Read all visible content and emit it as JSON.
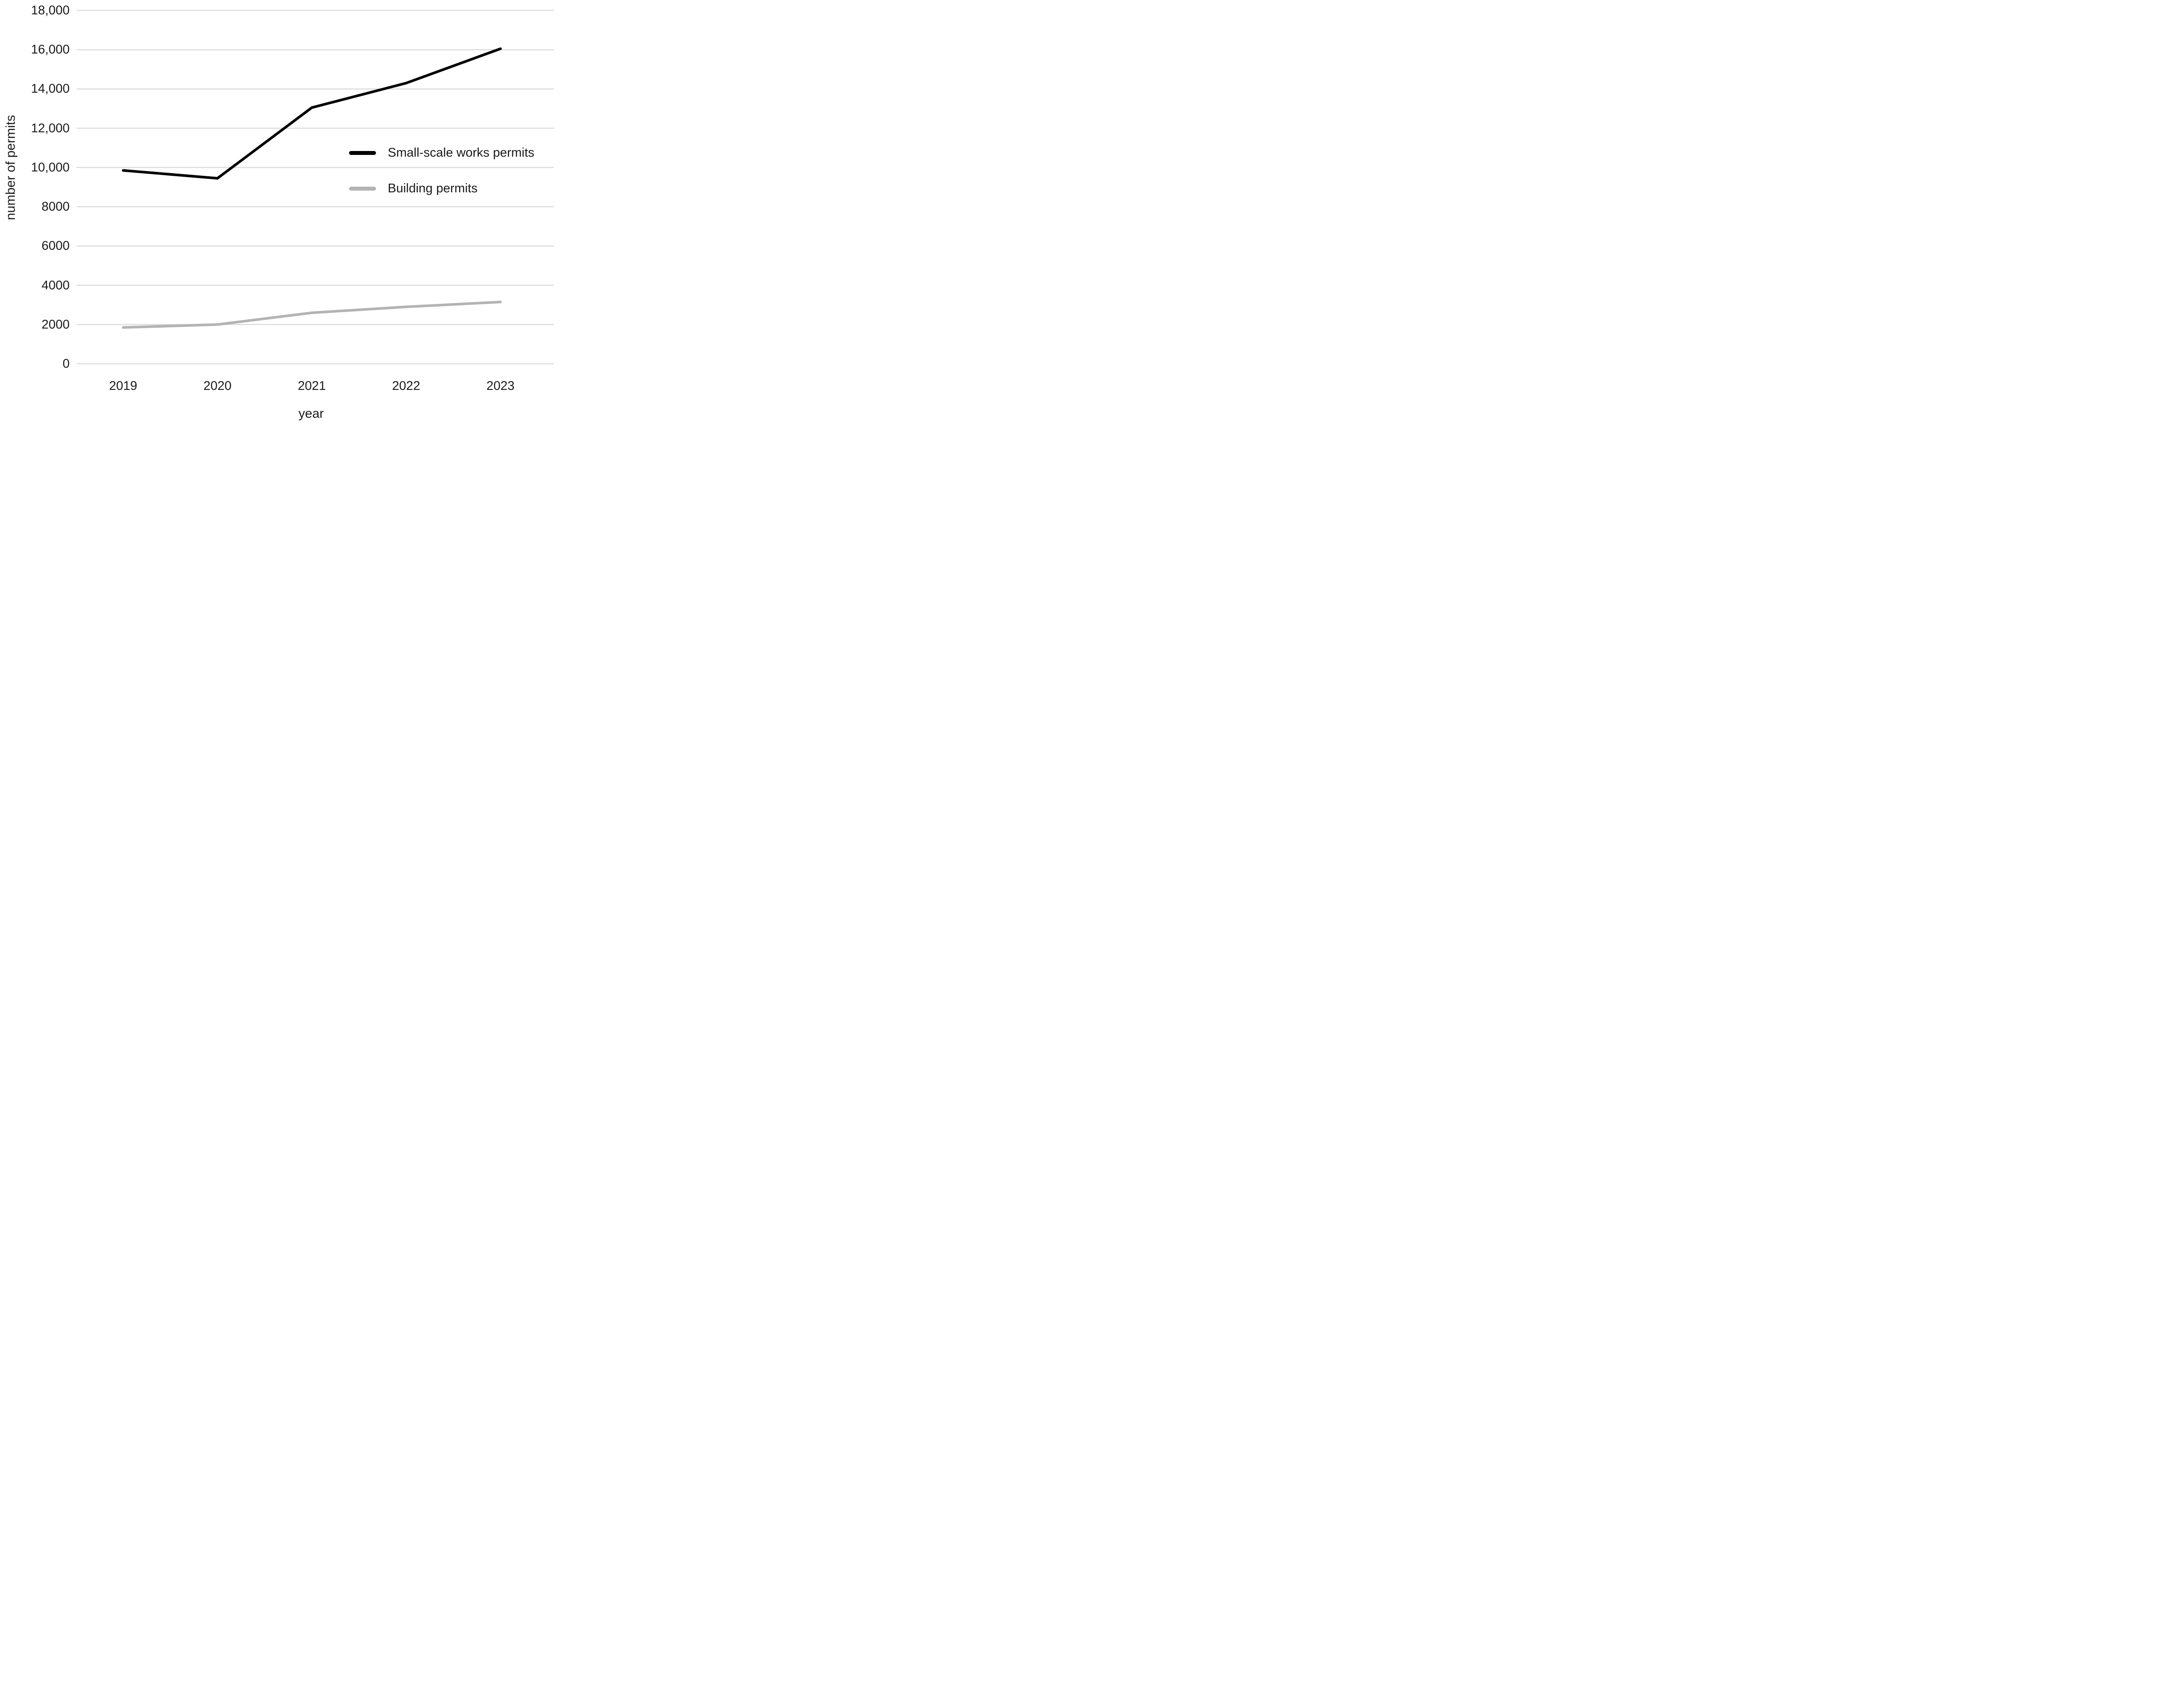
{
  "chart_data": {
    "type": "line",
    "title": "",
    "xlabel": "year",
    "ylabel": "number of permits",
    "categories": [
      "2019",
      "2020",
      "2021",
      "2022",
      "2023"
    ],
    "series": [
      {
        "name": "Small-scale works permits",
        "color": "#000000",
        "values": [
          9850,
          9450,
          13050,
          14300,
          16050
        ]
      },
      {
        "name": "Building permits",
        "color": "#b3b3b3",
        "values": [
          1850,
          2000,
          2600,
          2900,
          3150
        ]
      }
    ],
    "y_ticks": [
      {
        "value": 18000,
        "label": "18,000"
      },
      {
        "value": 16000,
        "label": "16,000"
      },
      {
        "value": 14000,
        "label": "14,000"
      },
      {
        "value": 12000,
        "label": "12,000"
      },
      {
        "value": 10000,
        "label": "10,000"
      },
      {
        "value": 8000,
        "label": "8000"
      },
      {
        "value": 6000,
        "label": "6000"
      },
      {
        "value": 4000,
        "label": "4000"
      },
      {
        "value": 2000,
        "label": "2000"
      },
      {
        "value": 0,
        "label": "0"
      }
    ],
    "ylim": [
      0,
      18000
    ],
    "grid": "horizontal",
    "legend_position": "right-middle",
    "colors": {
      "gridline": "#dcdcdc",
      "text": "#1a1a1a",
      "background": "#ffffff"
    }
  }
}
